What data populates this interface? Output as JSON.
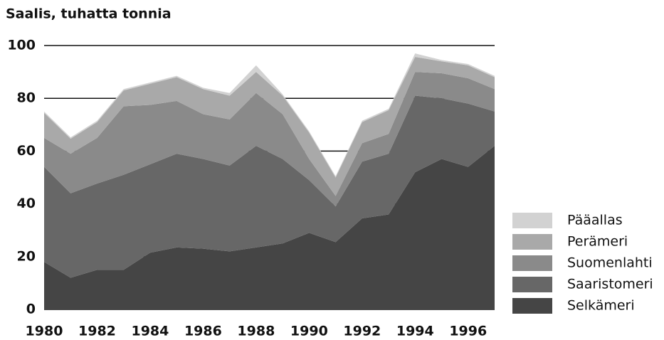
{
  "chart_data": {
    "type": "stacked_area",
    "title": "Saalis, tuhatta tonnia",
    "x": [
      1980,
      1981,
      1982,
      1983,
      1984,
      1985,
      1986,
      1987,
      1988,
      1989,
      1990,
      1991,
      1992,
      1993,
      1994,
      1995,
      1996,
      1997
    ],
    "xlim": [
      1980,
      1997
    ],
    "xticks": [
      1980,
      1982,
      1984,
      1986,
      1988,
      1990,
      1992,
      1994,
      1996
    ],
    "ylim": [
      0,
      100
    ],
    "yticks": [
      0,
      20,
      40,
      60,
      80,
      100
    ],
    "grid": true,
    "legend": "lower right",
    "series": [
      {
        "name": "Selkämeri",
        "color": "#454545",
        "values": [
          18,
          12,
          15,
          15,
          21.5,
          23.5,
          23,
          22,
          23.5,
          25,
          29,
          25.5,
          34.5,
          36,
          52,
          57,
          54,
          62
        ]
      },
      {
        "name": "Saaristomeri",
        "color": "#676767",
        "values": [
          36,
          32,
          32.7,
          36,
          33.5,
          35.5,
          34,
          32.5,
          38.5,
          32,
          20,
          13.5,
          21.5,
          23,
          29,
          23,
          24,
          13
        ]
      },
      {
        "name": "Suomenlahti",
        "color": "#8a8a8a",
        "values": [
          11,
          15,
          17.3,
          26,
          22.5,
          20,
          17,
          17.5,
          20,
          17,
          8,
          4,
          7,
          7.5,
          9,
          9.5,
          9.6,
          8.5
        ]
      },
      {
        "name": "Perämeri",
        "color": "#a9a9a9",
        "values": [
          9.5,
          5.7,
          6,
          6,
          8,
          9,
          9.5,
          9,
          8,
          7,
          10,
          7,
          8,
          9,
          5.7,
          4.5,
          4.9,
          4.5
        ]
      },
      {
        "name": "Pääallas",
        "color": "#d2d2d2",
        "values": [
          0.5,
          0.5,
          0.5,
          0.5,
          0.5,
          0.5,
          0.5,
          1,
          2.5,
          0.5,
          0.5,
          0.5,
          0.5,
          0.5,
          1.3,
          0.5,
          0.5,
          0.5
        ]
      }
    ]
  }
}
